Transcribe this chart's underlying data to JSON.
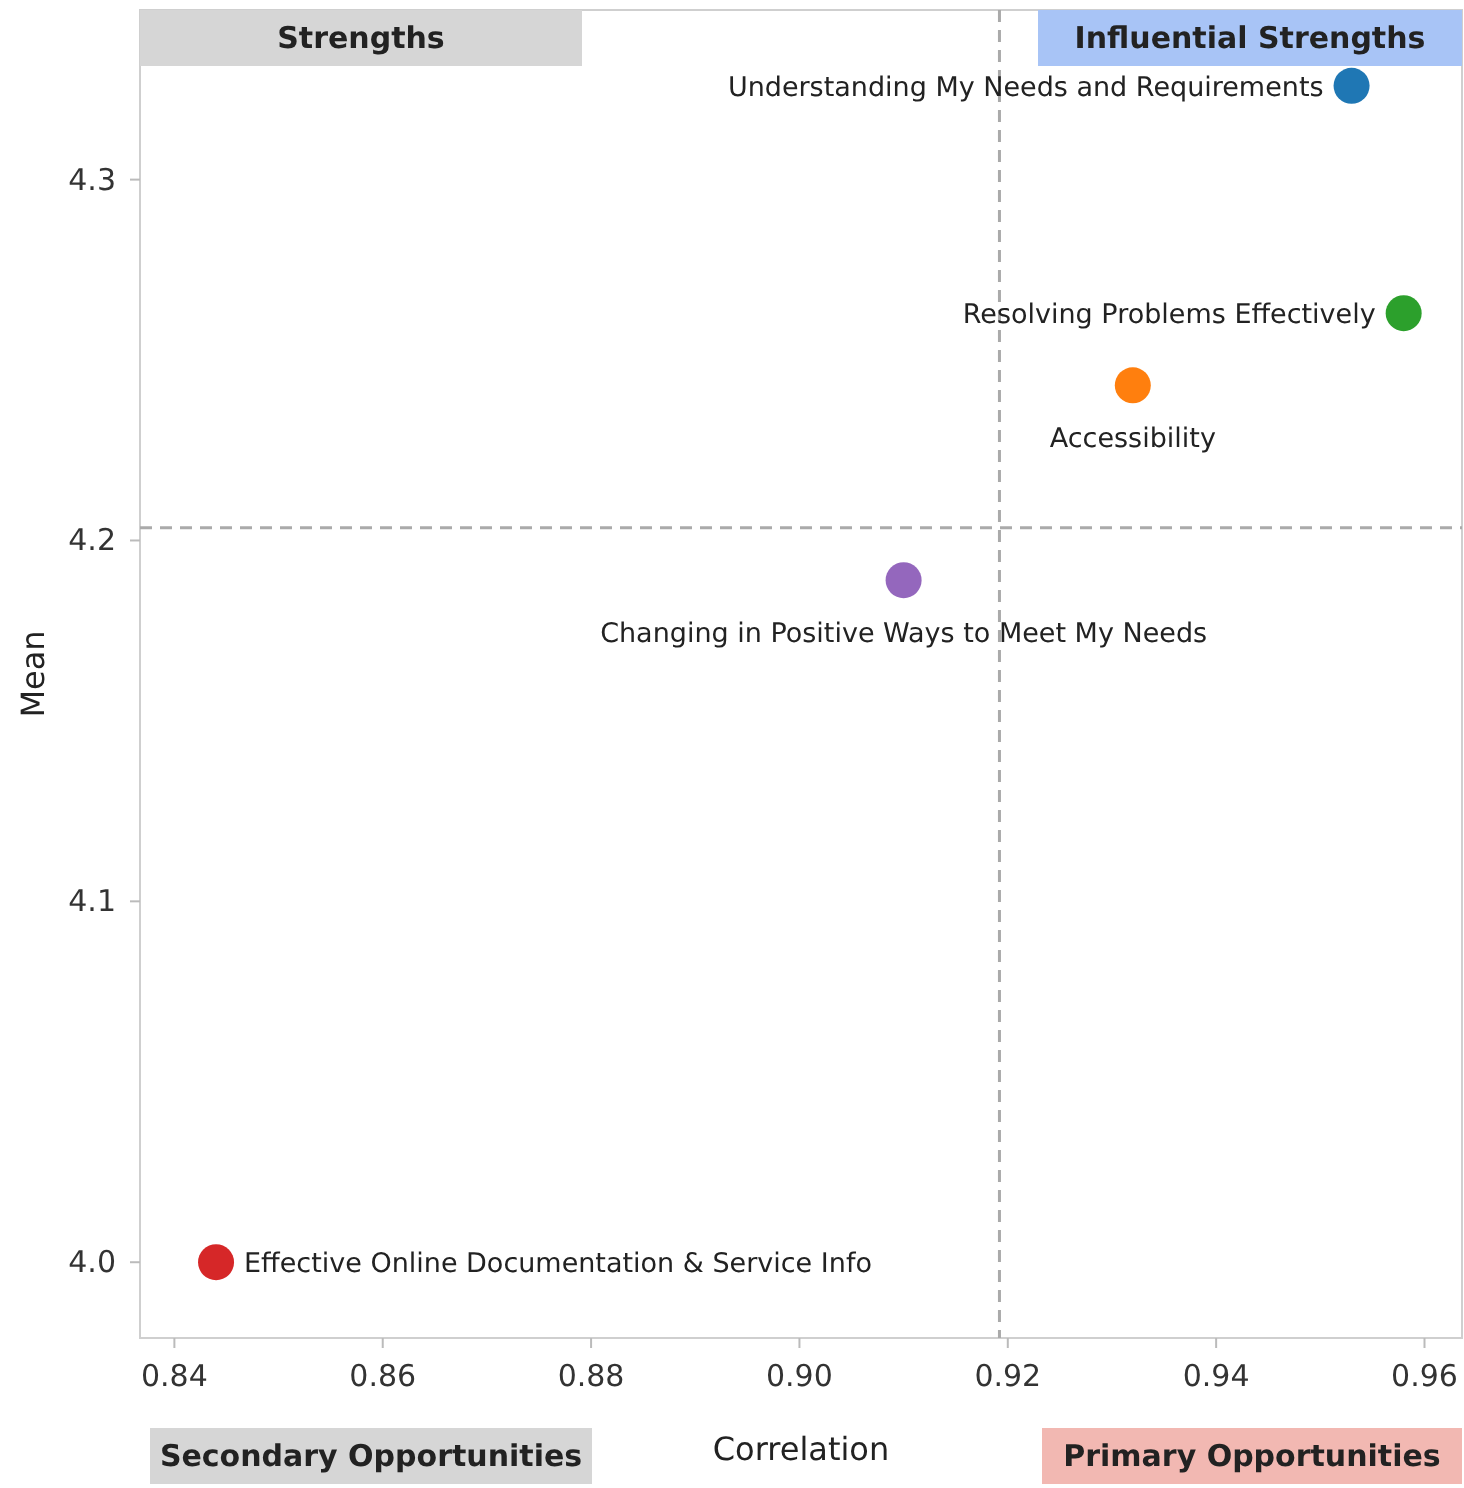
{
  "chart_data": {
    "type": "scatter",
    "xlabel": "Correlation",
    "ylabel": "Mean",
    "xlim": [
      0.8367,
      0.9636
    ],
    "ylim": [
      3.979,
      4.347
    ],
    "xticks": [
      0.84,
      0.86,
      0.88,
      {
        "value": 0.9,
        "label": "0.90"
      },
      0.92,
      0.94,
      0.96
    ],
    "yticks": [
      {
        "value": 4.0,
        "label": "4.0"
      },
      4.1,
      4.2,
      4.3
    ],
    "grid": false,
    "marker": "circle",
    "series": [
      {
        "name": "Understanding My Needs and Requirements",
        "color": "#1f77b4",
        "x": [
          0.953
        ],
        "values": [
          4.326
        ]
      },
      {
        "name": "Resolving Problems Effectively",
        "color": "#2ca02c",
        "x": [
          0.958
        ],
        "values": [
          4.263
        ]
      },
      {
        "name": "Accessibility",
        "color": "#ff7f0e",
        "x": [
          0.932
        ],
        "values": [
          4.243
        ]
      },
      {
        "name": "Changing in Positive Ways to Meet My Needs",
        "color": "#9467bd",
        "x": [
          0.91
        ],
        "values": [
          4.189
        ]
      },
      {
        "name": "Effective Online Documentation & Service Info",
        "color": "#d62728",
        "x": [
          0.844
        ],
        "values": [
          4.0
        ]
      }
    ],
    "ref_lines": [
      {
        "axis": "x",
        "value": 0.9192,
        "color": "#aaaaaa",
        "line_style": "dashed"
      },
      {
        "axis": "y",
        "value": 4.2035,
        "color": "#aaaaaa",
        "line_style": "dashed"
      }
    ],
    "annotations": [
      "Strengths",
      "Influential Strengths",
      "Secondary Opportunities",
      "Primary Opportunities"
    ]
  }
}
